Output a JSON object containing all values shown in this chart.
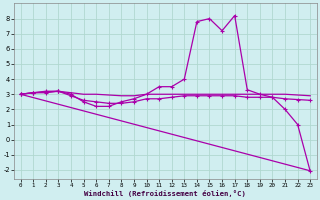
{
  "xlabel": "Windchill (Refroidissement éolien,°C)",
  "bg_color": "#d0eef0",
  "grid_color": "#b0d8d0",
  "line_color": "#aa00aa",
  "ylim": [
    -2.6,
    9.0
  ],
  "xlim": [
    -0.5,
    23.5
  ],
  "yticks": [
    -2,
    -1,
    0,
    1,
    2,
    3,
    4,
    5,
    6,
    7,
    8
  ],
  "xticks": [
    0,
    1,
    2,
    3,
    4,
    5,
    6,
    7,
    8,
    9,
    10,
    11,
    12,
    13,
    14,
    15,
    16,
    17,
    18,
    19,
    20,
    21,
    22,
    23
  ],
  "s1_y": [
    3.0,
    3.1,
    3.1,
    3.2,
    3.0,
    2.5,
    2.2,
    2.2,
    2.5,
    2.7,
    3.0,
    3.5,
    3.5,
    4.0,
    7.8,
    8.0,
    7.2,
    8.2,
    3.3,
    3.0,
    2.8,
    2.0,
    1.0,
    -2.1
  ],
  "s1_markers": [
    0,
    1,
    2,
    3,
    4,
    5,
    6,
    7,
    8,
    9,
    10,
    11,
    12,
    13,
    14,
    15,
    16,
    17,
    18,
    19,
    20,
    21,
    22,
    23
  ],
  "s2_y": [
    3.0,
    3.1,
    3.15,
    3.2,
    3.1,
    3.0,
    3.0,
    2.95,
    2.9,
    2.9,
    3.0,
    3.0,
    3.0,
    3.0,
    3.0,
    3.0,
    3.0,
    3.0,
    3.0,
    3.0,
    3.0,
    3.0,
    2.95,
    2.9
  ],
  "s2_markers": [
    0,
    1,
    2,
    3
  ],
  "s3_y": [
    3.0,
    2.78,
    2.56,
    2.34,
    2.12,
    1.9,
    1.68,
    1.46,
    1.24,
    1.02,
    0.8,
    0.58,
    0.36,
    0.14,
    -0.08,
    -0.3,
    -0.52,
    -0.74,
    -0.96,
    -1.18,
    -1.4,
    -1.62,
    -1.84,
    -2.06
  ],
  "s3_markers": [],
  "s4_y": [
    3.0,
    3.1,
    3.2,
    3.2,
    2.9,
    2.6,
    2.5,
    2.4,
    2.4,
    2.5,
    2.7,
    2.7,
    2.8,
    2.9,
    2.9,
    2.9,
    2.9,
    2.9,
    2.8,
    2.8,
    2.8,
    2.7,
    2.65,
    2.6
  ],
  "s4_markers": [
    0,
    1,
    2,
    3,
    4,
    5,
    6,
    7,
    8,
    9,
    10,
    11,
    12,
    13,
    14,
    15,
    16,
    17,
    18,
    19,
    20,
    21,
    22,
    23
  ]
}
